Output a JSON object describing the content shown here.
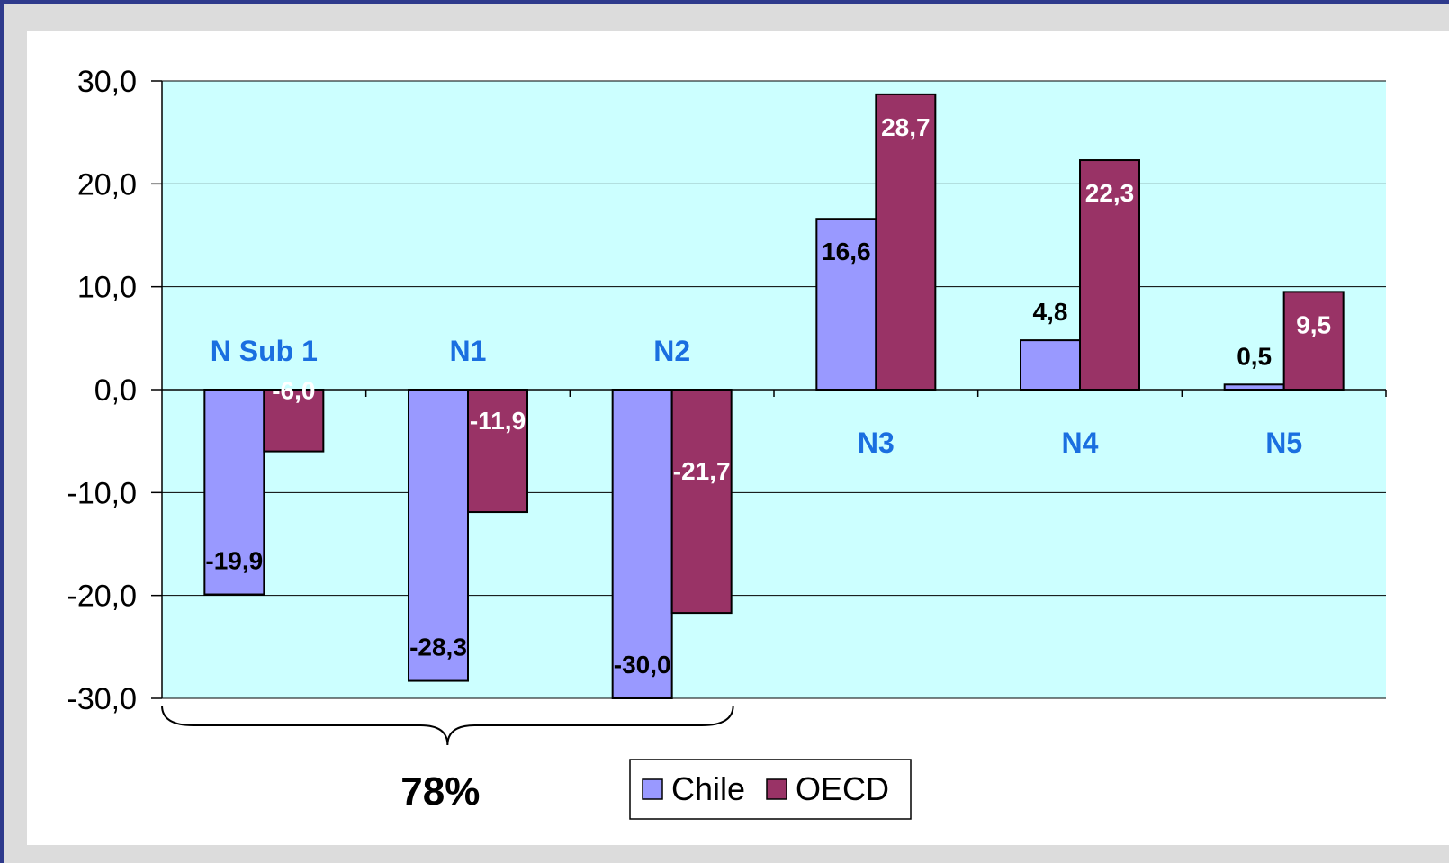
{
  "chart_data": {
    "type": "bar",
    "categories": [
      "N Sub 1",
      "N1",
      "N2",
      "N3",
      "N4",
      "N5"
    ],
    "series": [
      {
        "name": "Chile",
        "values": [
          -19.9,
          -28.3,
          -30.0,
          16.6,
          4.8,
          0.5
        ],
        "labels": [
          "-19,9",
          "-28,3",
          "-30,0",
          "16,6",
          "4,8",
          "0,5"
        ],
        "color": "#9999ff"
      },
      {
        "name": "OECD",
        "values": [
          -6.0,
          -11.9,
          -21.7,
          28.7,
          22.3,
          9.5
        ],
        "labels": [
          "-6,0",
          "-11,9",
          "-21,7",
          "28,7",
          "22,3",
          "9,5"
        ],
        "color": "#993366"
      }
    ],
    "ylim": [
      -30,
      30
    ],
    "yticks": [
      30,
      20,
      10,
      0,
      -10,
      -20,
      -30
    ],
    "ytick_labels": [
      "30,0",
      "20,0",
      "10,0",
      "0,0",
      "-10,0",
      "-20,0",
      "-30,0"
    ],
    "grid": true,
    "plot_background": "#ccffff",
    "category_label_color": "#1a6fe0",
    "annotation": {
      "text": "78%",
      "spans": [
        "N Sub 1",
        "N1",
        "N2"
      ]
    },
    "legend": {
      "placement": "bottom-center",
      "entries": [
        "Chile",
        "OECD"
      ]
    }
  }
}
